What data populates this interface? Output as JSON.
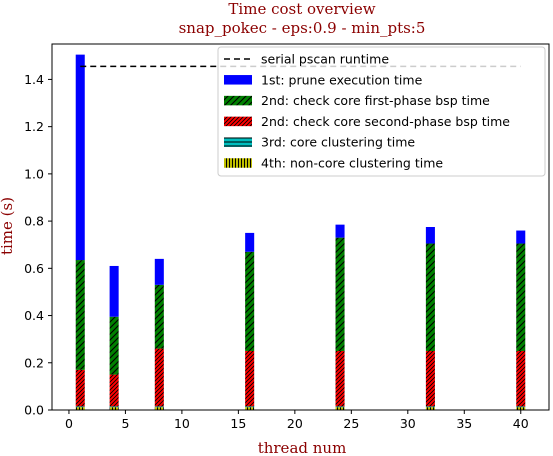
{
  "chart_data": {
    "type": "bar",
    "stacked": true,
    "title": "Time cost overview",
    "subtitle": "snap_pokec - eps:0.9 - min_pts:5",
    "xlabel": "thread num",
    "ylabel": "time (s)",
    "xlim": [
      -1.5,
      42.5
    ],
    "ylim": [
      0,
      1.55
    ],
    "xticks": [
      0,
      5,
      10,
      15,
      20,
      25,
      30,
      35,
      40
    ],
    "yticks": [
      0.0,
      0.2,
      0.4,
      0.6,
      0.8,
      1.0,
      1.2,
      1.4
    ],
    "ytick_labels": [
      "0.0",
      "0.2",
      "0.4",
      "0.6",
      "0.8",
      "1.0",
      "1.2",
      "1.4"
    ],
    "x": [
      1,
      4,
      8,
      16,
      24,
      32,
      40
    ],
    "bar_width": 0.8,
    "legend_position": "top-right",
    "colors": {
      "title": "#8b0000",
      "prune": "#0000ff",
      "first_phase": "#008000",
      "second_phase": "#ff0000",
      "core_clustering": "#00bfbf",
      "non_core": "#bfbf00",
      "serial_line": "#000000"
    },
    "reference_line": {
      "name": "serial pscan runtime",
      "value": 1.455,
      "x_range": [
        1,
        40
      ]
    },
    "series": [
      {
        "name": "1st: prune execution time",
        "values": [
          0.87,
          0.215,
          0.11,
          0.08,
          0.055,
          0.07,
          0.055
        ]
      },
      {
        "name": "2nd: check core first-phase bsp time",
        "values": [
          0.465,
          0.245,
          0.27,
          0.42,
          0.48,
          0.455,
          0.455
        ]
      },
      {
        "name": "2nd: check core second-phase bsp time",
        "values": [
          0.155,
          0.135,
          0.245,
          0.235,
          0.235,
          0.235,
          0.235
        ]
      },
      {
        "name": "3rd: core clustering time",
        "values": [
          0.003,
          0.003,
          0.003,
          0.003,
          0.003,
          0.003,
          0.003
        ]
      },
      {
        "name": "4th: non-core clustering time",
        "values": [
          0.012,
          0.012,
          0.012,
          0.012,
          0.012,
          0.012,
          0.012
        ]
      }
    ]
  }
}
